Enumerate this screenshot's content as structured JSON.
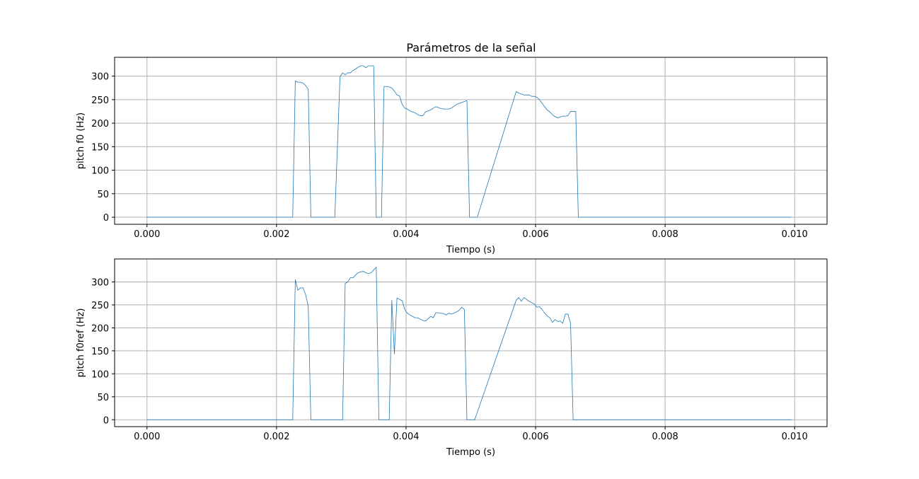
{
  "figure_title": "Parámetros de la señal",
  "colors": {
    "series": "#1f77b4",
    "grid": "#b0b0b0"
  },
  "chart_data": [
    {
      "type": "line",
      "title": "",
      "xlabel": "Tiempo (s)",
      "ylabel": "pitch f0 (Hz)",
      "xlim": [
        -0.0005,
        0.0105
      ],
      "ylim": [
        -15,
        340
      ],
      "xticks": [
        0.0,
        0.002,
        0.004,
        0.006,
        0.008,
        0.01
      ],
      "xtick_labels": [
        "0.000",
        "0.002",
        "0.004",
        "0.006",
        "0.008",
        "0.010"
      ],
      "yticks": [
        0,
        50,
        100,
        150,
        200,
        250,
        300
      ],
      "ytick_labels": [
        "0",
        "50",
        "100",
        "150",
        "200",
        "250",
        "300"
      ],
      "grid": true,
      "series": [
        {
          "x": [
            0.0,
            0.00225,
            0.00229,
            0.00233,
            0.00237,
            0.00241,
            0.00245,
            0.00249,
            0.00253,
            0.00257,
            0.0029,
            0.00298,
            0.00302,
            0.00306,
            0.0031,
            0.00314,
            0.00318,
            0.00322,
            0.00326,
            0.0033,
            0.00334,
            0.00338,
            0.00342,
            0.00346,
            0.0035,
            0.00354,
            0.00358,
            0.00362,
            0.00366,
            0.00372,
            0.00378,
            0.00382,
            0.00386,
            0.0039,
            0.00394,
            0.00398,
            0.00402,
            0.00406,
            0.0041,
            0.00414,
            0.00418,
            0.00422,
            0.00426,
            0.0043,
            0.00434,
            0.00438,
            0.00442,
            0.00446,
            0.0045,
            0.00454,
            0.00458,
            0.00462,
            0.00466,
            0.0047,
            0.00474,
            0.00478,
            0.00482,
            0.00486,
            0.0049,
            0.00494,
            0.00498,
            0.00502,
            0.00506,
            0.0051,
            0.0057,
            0.00574,
            0.00578,
            0.00582,
            0.00586,
            0.0059,
            0.00594,
            0.00598,
            0.00602,
            0.00606,
            0.0061,
            0.00614,
            0.00618,
            0.00622,
            0.00626,
            0.0063,
            0.00634,
            0.00638,
            0.00642,
            0.00646,
            0.0065,
            0.00654,
            0.00658,
            0.00662,
            0.00666,
            0.00672,
            0.00995
          ],
          "y": [
            0,
            0,
            290,
            287,
            287,
            285,
            280,
            272,
            0,
            0,
            0,
            298,
            307,
            303,
            307,
            307,
            312,
            315,
            319,
            322,
            322,
            318,
            322,
            322,
            322,
            0,
            0,
            0,
            278,
            278,
            275,
            268,
            260,
            258,
            240,
            232,
            230,
            226,
            224,
            222,
            218,
            216,
            216,
            224,
            226,
            228,
            232,
            235,
            233,
            231,
            230,
            230,
            230,
            232,
            236,
            240,
            242,
            244,
            246,
            248,
            0,
            0,
            0,
            0,
            267,
            264,
            262,
            260,
            260,
            260,
            257,
            257,
            255,
            250,
            242,
            235,
            228,
            224,
            218,
            214,
            211,
            213,
            215,
            215,
            216,
            225,
            225,
            225,
            0,
            0,
            0
          ]
        }
      ]
    },
    {
      "type": "line",
      "title": "",
      "xlabel": "Tiempo (s)",
      "ylabel": "pitch f0ref (Hz)",
      "xlim": [
        -0.0005,
        0.0105
      ],
      "ylim": [
        -15,
        350
      ],
      "xticks": [
        0.0,
        0.002,
        0.004,
        0.006,
        0.008,
        0.01
      ],
      "xtick_labels": [
        "0.000",
        "0.002",
        "0.004",
        "0.006",
        "0.008",
        "0.010"
      ],
      "yticks": [
        0,
        50,
        100,
        150,
        200,
        250,
        300
      ],
      "ytick_labels": [
        "0",
        "50",
        "100",
        "150",
        "200",
        "250",
        "300"
      ],
      "grid": true,
      "series": [
        {
          "x": [
            0.0,
            0.00225,
            0.00229,
            0.00233,
            0.00237,
            0.00241,
            0.00245,
            0.00249,
            0.00253,
            0.00257,
            0.00302,
            0.00306,
            0.0031,
            0.00314,
            0.00318,
            0.00322,
            0.00326,
            0.0033,
            0.00334,
            0.00338,
            0.00342,
            0.00346,
            0.0035,
            0.00354,
            0.00358,
            0.00362,
            0.00366,
            0.00374,
            0.00378,
            0.00382,
            0.00386,
            0.0039,
            0.00394,
            0.00398,
            0.00402,
            0.00406,
            0.0041,
            0.00414,
            0.00418,
            0.00422,
            0.00426,
            0.0043,
            0.00434,
            0.00438,
            0.00442,
            0.00446,
            0.0045,
            0.00454,
            0.00458,
            0.00462,
            0.00466,
            0.0047,
            0.00474,
            0.00478,
            0.00482,
            0.00486,
            0.0049,
            0.00494,
            0.00498,
            0.00502,
            0.00506,
            0.0057,
            0.00574,
            0.00578,
            0.00582,
            0.00586,
            0.0059,
            0.00594,
            0.00598,
            0.00602,
            0.00606,
            0.0061,
            0.00614,
            0.00618,
            0.00622,
            0.00626,
            0.0063,
            0.00634,
            0.00638,
            0.00642,
            0.00646,
            0.0065,
            0.00654,
            0.00658,
            0.00662,
            0.00666,
            0.0067,
            0.00674,
            0.00995
          ],
          "y": [
            0,
            0,
            305,
            282,
            287,
            287,
            272,
            247,
            0,
            0,
            0,
            297,
            300,
            309,
            309,
            315,
            320,
            322,
            323,
            320,
            318,
            320,
            326,
            332,
            0,
            0,
            0,
            0,
            260,
            143,
            265,
            262,
            259,
            240,
            232,
            228,
            225,
            222,
            222,
            219,
            216,
            215,
            220,
            225,
            222,
            233,
            233,
            232,
            231,
            228,
            232,
            230,
            232,
            235,
            238,
            245,
            240,
            0,
            0,
            0,
            0,
            260,
            266,
            258,
            266,
            262,
            258,
            255,
            252,
            245,
            246,
            240,
            232,
            226,
            222,
            212,
            218,
            214,
            215,
            210,
            230,
            230,
            210,
            0,
            0,
            0,
            0,
            0,
            0
          ]
        }
      ]
    }
  ]
}
